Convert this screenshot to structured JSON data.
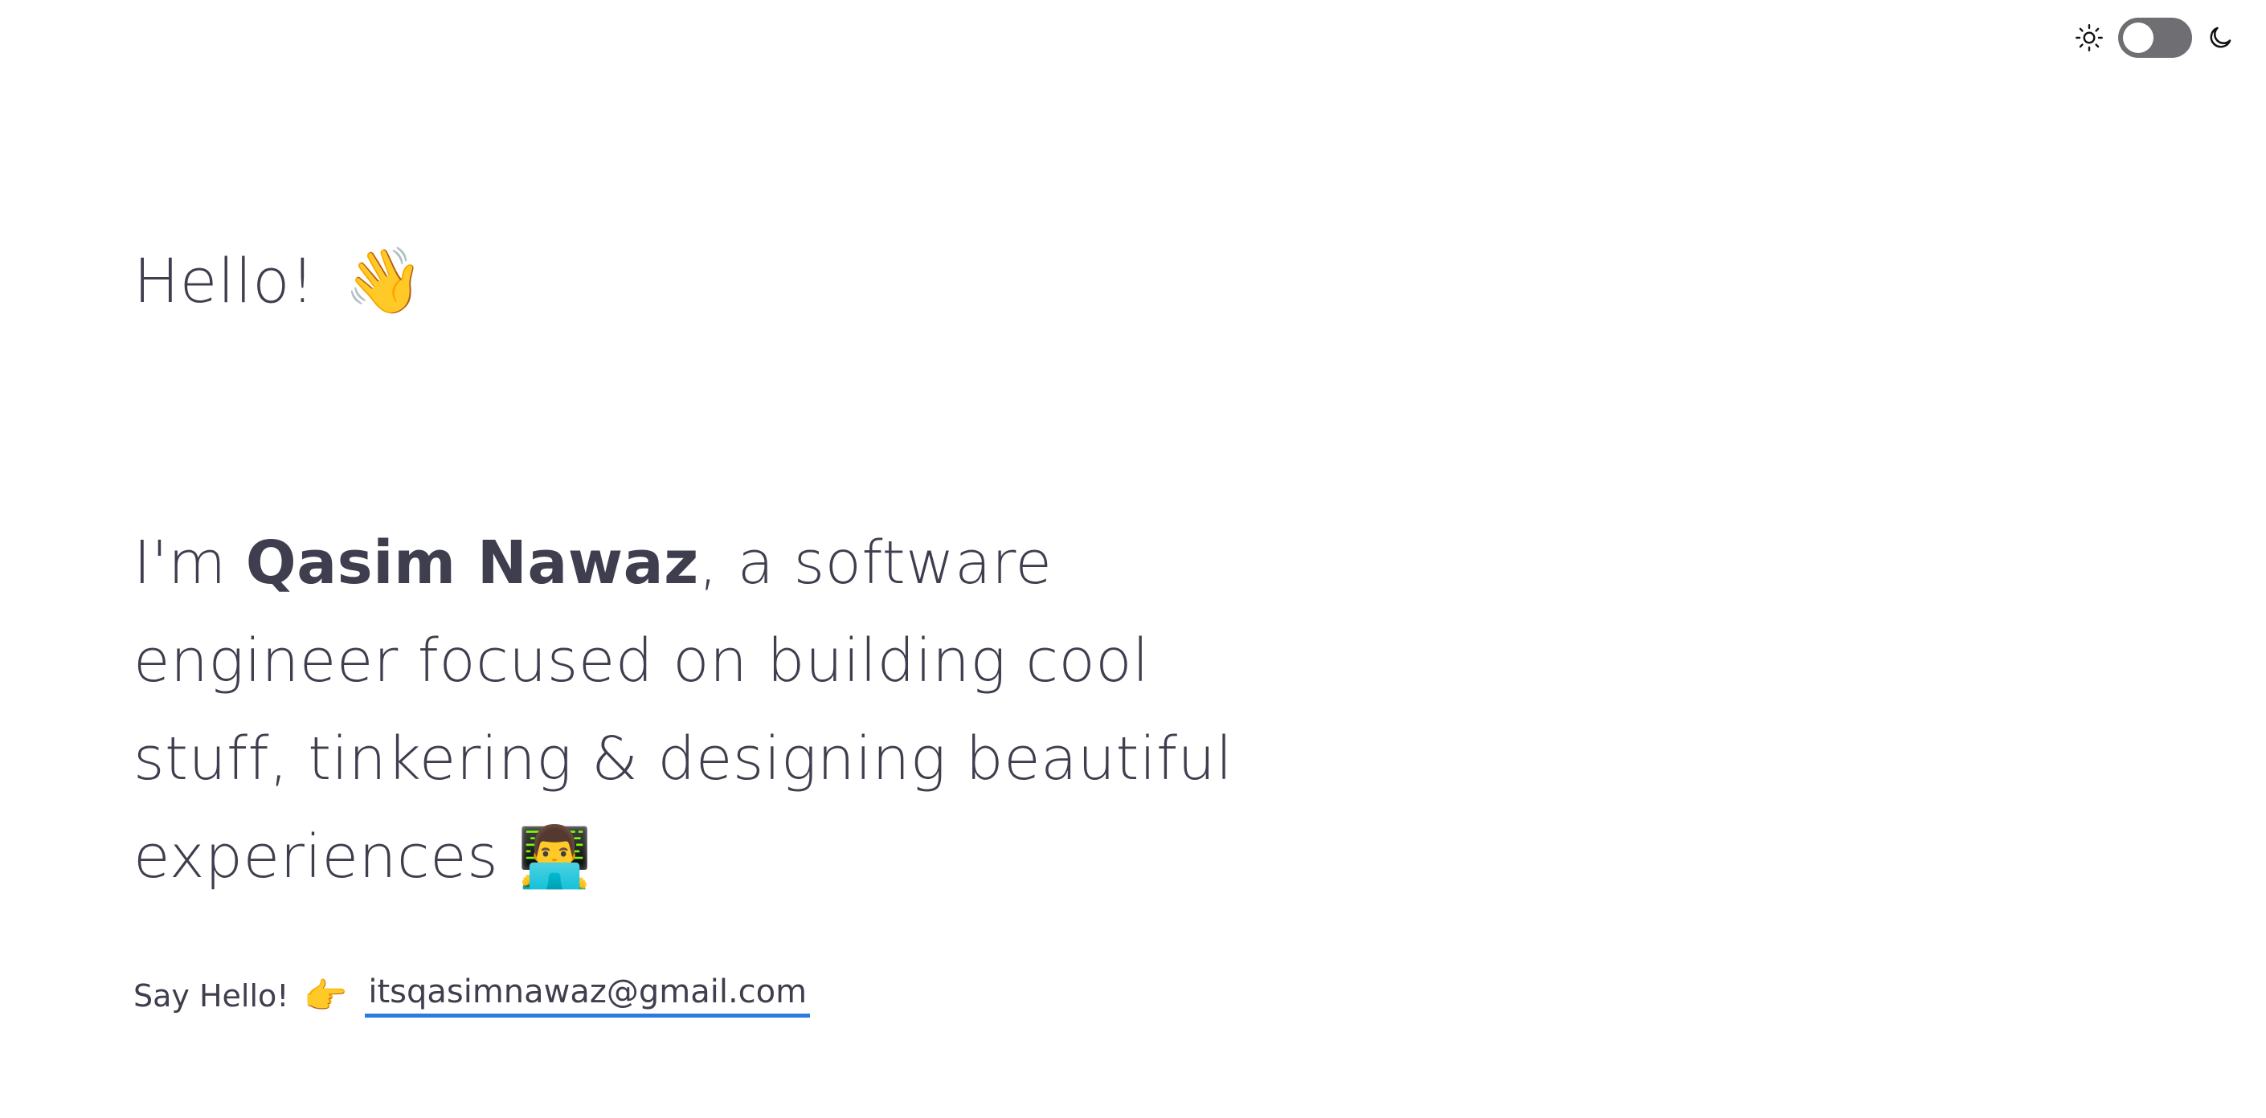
{
  "theme_toggle": {
    "light_icon": "sun-icon",
    "dark_icon": "moon-icon",
    "state": "light"
  },
  "hero": {
    "greeting_text": "Hello!",
    "greeting_emoji": "👋"
  },
  "intro": {
    "prefix": "I'm ",
    "name": "Qasim Nawaz",
    "suffix": ", a software engineer focused on building cool stuff, tinkering & designing beautiful experiences ",
    "emoji": "👨‍💻"
  },
  "contact": {
    "label": "Say Hello!",
    "pointer_emoji": "👉",
    "email": "itsqasimnawaz@gmail.com"
  },
  "colors": {
    "text": "#3e3e4e",
    "link_underline": "#2a7ae2",
    "toggle_track": "#6e6e73"
  }
}
